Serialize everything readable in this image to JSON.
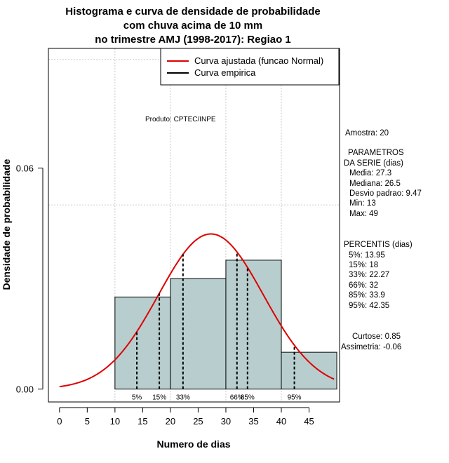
{
  "chart_data": {
    "type": "bar",
    "title": [
      "Histograma e curva de densidade de probabilidade",
      "com chuva acima de 10 mm",
      "no trimestre AMJ (1998-2017): Regiao 1"
    ],
    "xlabel": "Numero de dias",
    "ylabel": "Densidade de probabilidade",
    "xlim": [
      -2,
      50.5
    ],
    "ylim": [
      -0.0035,
      0.0925
    ],
    "x_ticks": [
      0,
      5,
      10,
      15,
      20,
      25,
      30,
      35,
      40,
      45
    ],
    "y_ticks": [
      0.0,
      0.06
    ],
    "y_tick_labels": [
      "0.00",
      "0.06"
    ],
    "grid": true,
    "grid_x": [
      10,
      20,
      30,
      40
    ],
    "grid_y": [
      0.05,
      0.0895
    ],
    "histogram": {
      "bins": [
        {
          "from": 10,
          "to": 20,
          "density": 0.025
        },
        {
          "from": 20,
          "to": 30,
          "density": 0.03
        },
        {
          "from": 30,
          "to": 40,
          "density": 0.035
        },
        {
          "from": 40,
          "to": 50,
          "density": 0.01
        }
      ],
      "fill": "#b8cece"
    },
    "normal_fit": {
      "mean": 27.3,
      "sd": 9.47,
      "from": 0,
      "to": 49.5,
      "color": "#dd0000"
    },
    "percentile_lines": [
      {
        "label": "5%",
        "value": 13.95
      },
      {
        "label": "15%",
        "value": 18
      },
      {
        "label": "33%",
        "value": 22.27
      },
      {
        "label": "66%",
        "value": 32
      },
      {
        "label": "85%",
        "value": 33.9
      },
      {
        "label": "95%",
        "value": 42.35
      }
    ],
    "legend": {
      "position": "top-right",
      "entries": [
        {
          "label": "Curva ajustada (funcao Normal)",
          "color": "#dd0000"
        },
        {
          "label": "Curva empirica",
          "color": "#000000"
        }
      ]
    },
    "annotation": "Produto: CPTEC/INPE"
  },
  "stats": {
    "amostra": "Amostra: 20",
    "params_title_1": "PARAMETROS",
    "params_title_2": "DA SERIE (dias)",
    "media": "Media: 27.3",
    "mediana": "Mediana: 26.5",
    "desvio": "Desvio padrao: 9.47",
    "min": "Min: 13",
    "max": "Max: 49",
    "percentis_title": "PERCENTIS (dias)",
    "p5": "5%: 13.95",
    "p15": "15%: 18",
    "p33": "33%: 22.27",
    "p66": "66%: 32",
    "p85": "85%: 33.9",
    "p95": "95%: 42.35",
    "curtose": "Curtose: 0.85",
    "assimetria": "Assimetria: -0.06"
  }
}
